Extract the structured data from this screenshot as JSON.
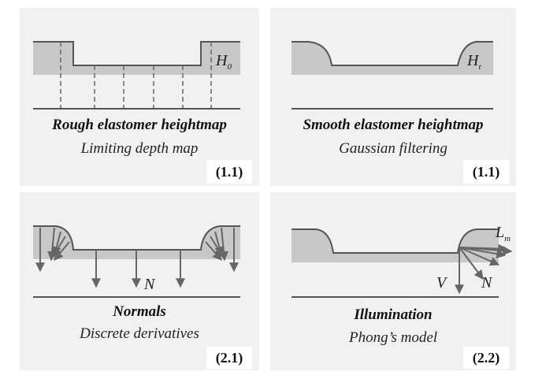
{
  "panels": {
    "rough": {
      "title": "Rough elastomer heightmap",
      "subtitle": "Limiting depth map",
      "tag": "(1.1)",
      "label_main": "H",
      "label_sub": "0"
    },
    "smooth": {
      "title": "Smooth elastomer heightmap",
      "subtitle": "Gaussian filtering",
      "tag": "(1.1)",
      "label_main": "H",
      "label_sub": "t"
    },
    "normals": {
      "title": "Normals",
      "subtitle": "Discrete derivatives",
      "tag": "(2.1)",
      "label_main": "N"
    },
    "illum": {
      "title": "Illumination",
      "subtitle": "Phong’s model",
      "tag": "(2.2)",
      "label_v": "V",
      "label_n": "N",
      "label_l_main": "L",
      "label_l_sub": "m"
    }
  },
  "colors": {
    "panel_bg": "#f1f1f1",
    "fill": "#c8c8c8",
    "stroke": "#555555",
    "dash": "#666666"
  }
}
